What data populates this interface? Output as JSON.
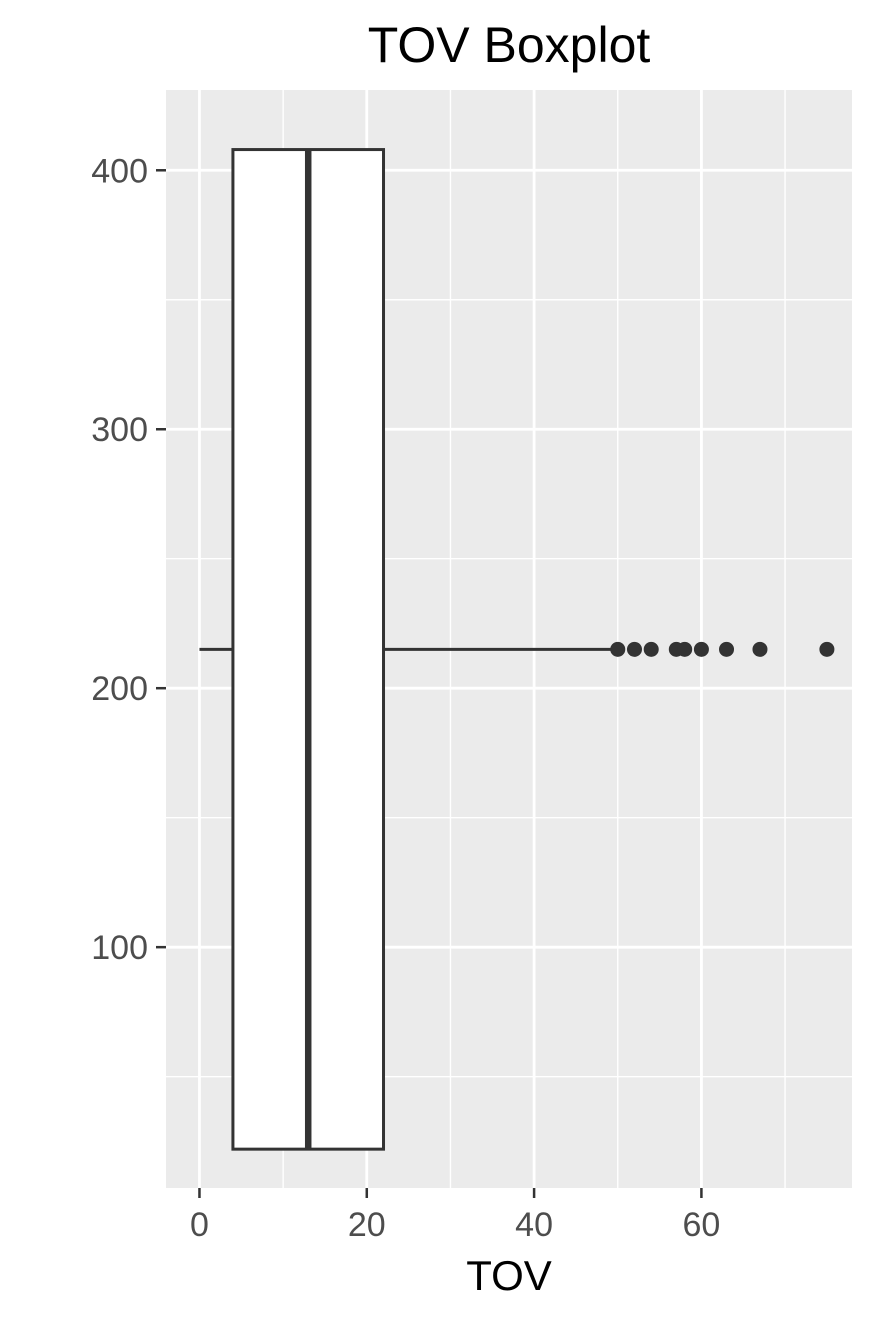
{
  "chart_data": {
    "type": "boxplot",
    "title": "TOV Boxplot",
    "xlabel": "TOV",
    "ylabel": "",
    "xlim": [
      -4,
      78
    ],
    "ylim": [
      7,
      431
    ],
    "x_ticks": [
      0,
      20,
      40,
      60
    ],
    "y_ticks": [
      100,
      200,
      300,
      400
    ],
    "x_minor_ticks": [
      10,
      30,
      50,
      70
    ],
    "y_minor_ticks": [
      50,
      150,
      250,
      350
    ],
    "grid": true,
    "legend": "none",
    "colors": {
      "panel": "#ebebeb",
      "grid": "#ffffff",
      "box_fill": "#ffffff",
      "box_line": "#333333",
      "outlier": "#333333",
      "tick_label": "#4d4d4d",
      "text": "#000000"
    },
    "box": {
      "min": 0,
      "q1": 4,
      "median": 13,
      "q3": 22,
      "whisker_high": 50,
      "y_low": 22,
      "y_high": 408,
      "y_center": 215
    },
    "outliers": [
      50,
      52,
      54,
      57,
      58,
      60,
      63,
      67,
      75
    ]
  }
}
